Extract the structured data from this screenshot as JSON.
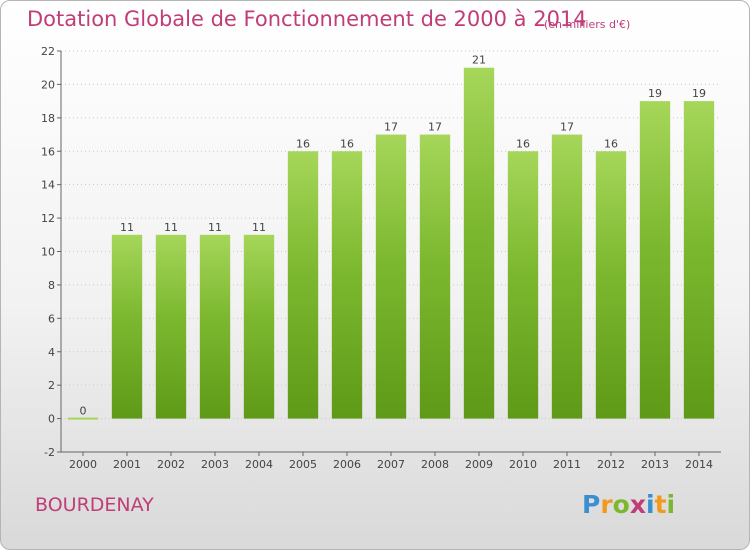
{
  "chart_data": {
    "type": "bar",
    "title": "Dotation Globale de Fonctionnement de 2000 à 2014",
    "subtitle": "(en milliers d'€)",
    "categories": [
      "2000",
      "2001",
      "2002",
      "2003",
      "2004",
      "2005",
      "2006",
      "2007",
      "2008",
      "2009",
      "2010",
      "2011",
      "2012",
      "2013",
      "2014"
    ],
    "values": [
      0,
      11,
      11,
      11,
      11,
      16,
      16,
      17,
      17,
      21,
      16,
      17,
      16,
      19,
      19
    ],
    "ylim": [
      -2,
      22
    ],
    "yticks": [
      -2,
      0,
      2,
      4,
      6,
      8,
      10,
      12,
      14,
      16,
      18,
      20,
      22
    ],
    "xlabel": "",
    "ylabel": "",
    "grid": "horizontal-dotted",
    "bar_color": "#7cb82f",
    "bar_color_light": "#a6d65a",
    "bar_color_dark": "#5e9a17"
  },
  "commune": "BOURDENAY",
  "logo": {
    "letters": [
      {
        "char": "P",
        "color": "#3b8fd1"
      },
      {
        "char": "r",
        "color": "#f29a1d"
      },
      {
        "char": "o",
        "color": "#7cb82f"
      },
      {
        "char": "x",
        "color": "#c03d78"
      },
      {
        "char": "i",
        "color": "#3b8fd1"
      },
      {
        "char": "t",
        "color": "#f29a1d"
      },
      {
        "char": "i",
        "color": "#7cb82f"
      }
    ]
  }
}
